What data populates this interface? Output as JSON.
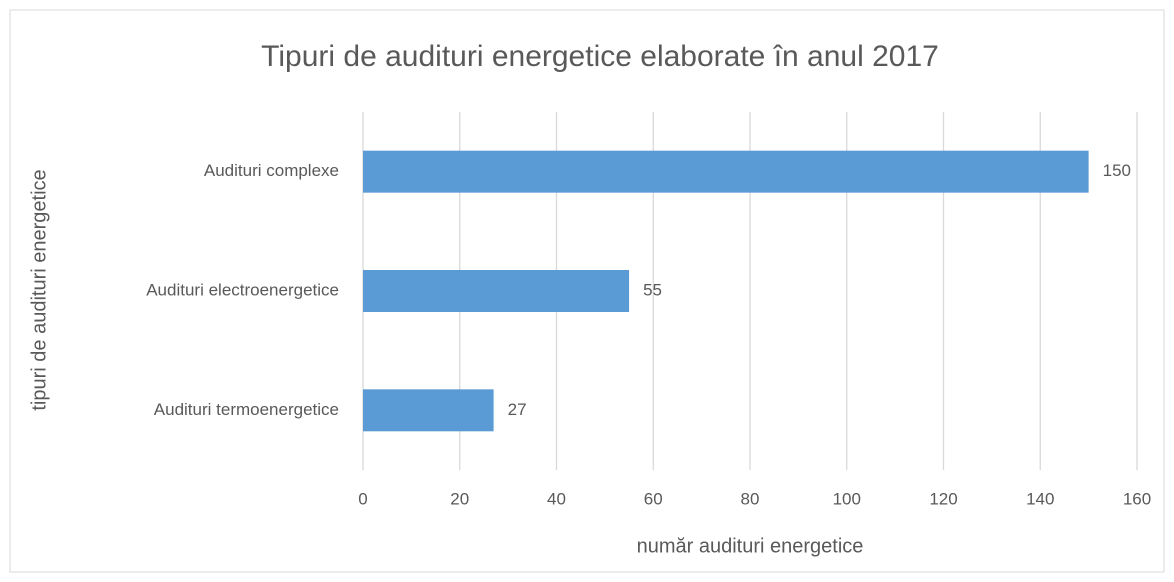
{
  "chart_data": {
    "type": "bar",
    "orientation": "horizontal",
    "title": "Tipuri de audituri energetice elaborate în anul 2017",
    "x_label": "număr audituri energetice",
    "y_label": "tipuri de audituri energetice",
    "categories": [
      "Audituri complexe",
      "Audituri electroenergetice",
      "Audituri termoenergetice"
    ],
    "values": [
      150,
      55,
      27
    ],
    "color": "#5b9bd5",
    "xlim": [
      0,
      160
    ],
    "xticks": [
      0,
      20,
      40,
      60,
      80,
      100,
      120,
      140,
      160
    ],
    "grid": true
  }
}
